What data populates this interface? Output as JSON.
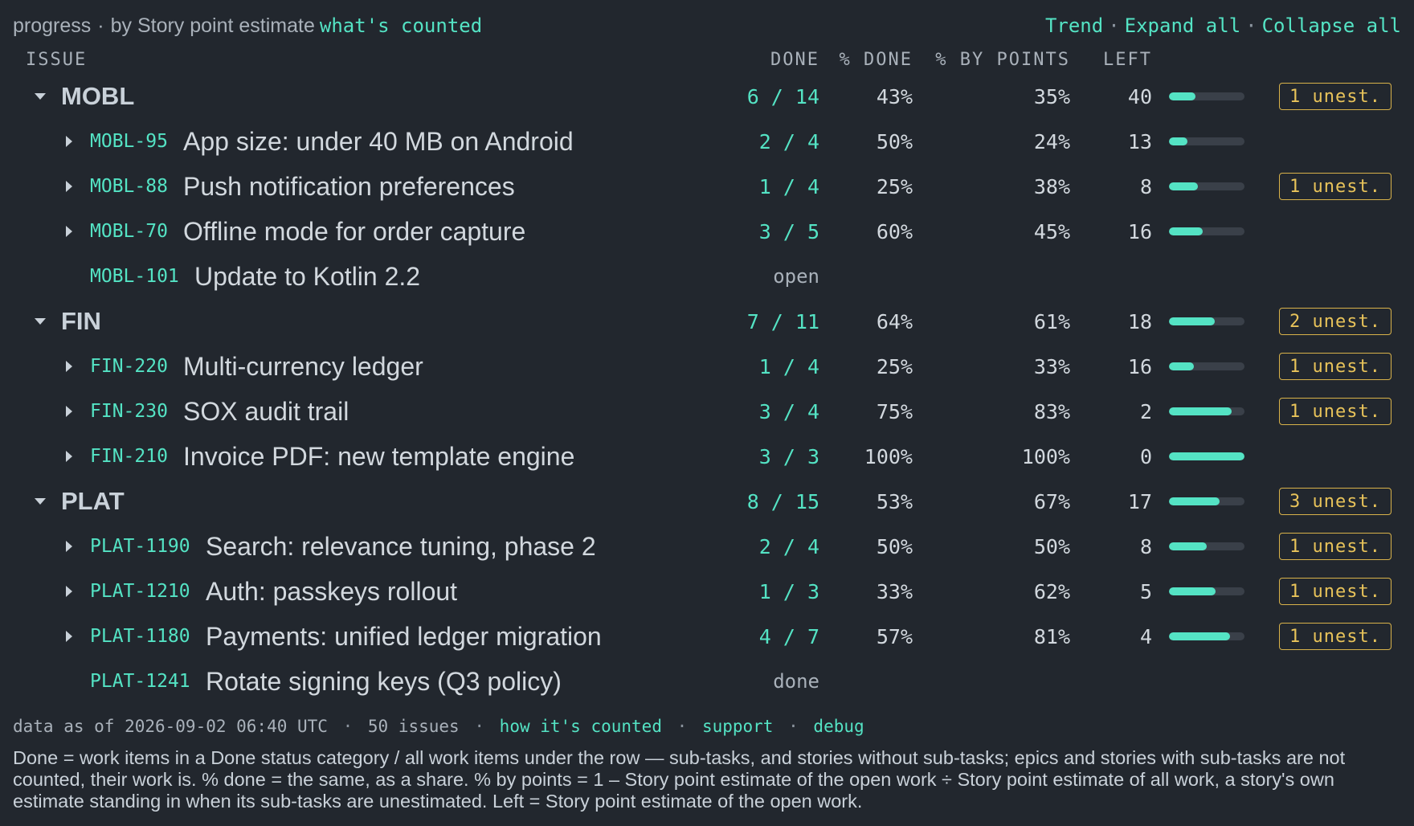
{
  "topbar": {
    "crumb": "progress",
    "separator": "·",
    "by_label": "by Story point estimate",
    "whats_counted": "what's counted",
    "links": [
      "Trend",
      "Expand all",
      "Collapse all"
    ],
    "link_dot": "·"
  },
  "columns": {
    "issue": "ISSUE",
    "done": "DONE",
    "pct_done": "% DONE",
    "pct_points": "% BY POINTS",
    "left": "LEFT"
  },
  "rows": [
    {
      "kind": "project",
      "name": "MOBL",
      "done": "6 / 14",
      "pct": "43%",
      "pts": "35%",
      "left": "40",
      "progress": 0.35,
      "badge": "1 unest."
    },
    {
      "kind": "issue",
      "key": "MOBL-95",
      "summary": "App size: under 40 MB on Android",
      "done": "2 / 4",
      "pct": "50%",
      "pts": "24%",
      "left": "13",
      "progress": 0.24,
      "badge": ""
    },
    {
      "kind": "issue",
      "key": "MOBL-88",
      "summary": "Push notification preferences",
      "done": "1 / 4",
      "pct": "25%",
      "pts": "38%",
      "left": "8",
      "progress": 0.38,
      "badge": "1 unest."
    },
    {
      "kind": "issue",
      "key": "MOBL-70",
      "summary": "Offline mode for order capture",
      "done": "3 / 5",
      "pct": "60%",
      "pts": "45%",
      "left": "16",
      "progress": 0.45,
      "badge": ""
    },
    {
      "kind": "leaf",
      "key": "MOBL-101",
      "summary": "Update to Kotlin 2.2",
      "status": "open"
    },
    {
      "kind": "project",
      "name": "FIN",
      "done": "7 / 11",
      "pct": "64%",
      "pts": "61%",
      "left": "18",
      "progress": 0.61,
      "badge": "2 unest."
    },
    {
      "kind": "issue",
      "key": "FIN-220",
      "summary": "Multi-currency ledger",
      "done": "1 / 4",
      "pct": "25%",
      "pts": "33%",
      "left": "16",
      "progress": 0.33,
      "badge": "1 unest."
    },
    {
      "kind": "issue",
      "key": "FIN-230",
      "summary": "SOX audit trail",
      "done": "3 / 4",
      "pct": "75%",
      "pts": "83%",
      "left": "2",
      "progress": 0.83,
      "badge": "1 unest."
    },
    {
      "kind": "issue",
      "key": "FIN-210",
      "summary": "Invoice PDF: new template engine",
      "done": "3 / 3",
      "pct": "100%",
      "pts": "100%",
      "left": "0",
      "progress": 1.0,
      "badge": ""
    },
    {
      "kind": "project",
      "name": "PLAT",
      "done": "8 / 15",
      "pct": "53%",
      "pts": "67%",
      "left": "17",
      "progress": 0.67,
      "badge": "3 unest."
    },
    {
      "kind": "issue",
      "key": "PLAT-1190",
      "summary": "Search: relevance tuning, phase 2",
      "done": "2 / 4",
      "pct": "50%",
      "pts": "50%",
      "left": "8",
      "progress": 0.5,
      "badge": "1 unest."
    },
    {
      "kind": "issue",
      "key": "PLAT-1210",
      "summary": "Auth: passkeys rollout",
      "done": "1 / 3",
      "pct": "33%",
      "pts": "62%",
      "left": "5",
      "progress": 0.62,
      "badge": "1 unest."
    },
    {
      "kind": "issue",
      "key": "PLAT-1180",
      "summary": "Payments: unified ledger migration",
      "done": "4 / 7",
      "pct": "57%",
      "pts": "81%",
      "left": "4",
      "progress": 0.81,
      "badge": "1 unest."
    },
    {
      "kind": "leaf",
      "key": "PLAT-1241",
      "summary": "Rotate signing keys (Q3 policy)",
      "status": "done"
    }
  ],
  "footer": {
    "data_as_of": "data as of 2026-09-02 06:40 UTC",
    "issues": "50 issues",
    "how_counted": "how it's counted",
    "support": "support",
    "debug": "debug",
    "dot": "·",
    "note": "Done = work items in a Done status category / all work items under the row — sub-tasks, and stories without sub-tasks; epics and stories with sub-tasks are not counted, their work is. % done = the same, as a share. % by points = 1 – Story point estimate of the open work ÷ Story point estimate of all work, a story's own estimate standing in when its sub-tasks are unestimated. Left = Story point estimate of the open work."
  },
  "colors": {
    "background": "#22272e",
    "accent": "#54e3c4",
    "badge": "#e8c35a"
  }
}
